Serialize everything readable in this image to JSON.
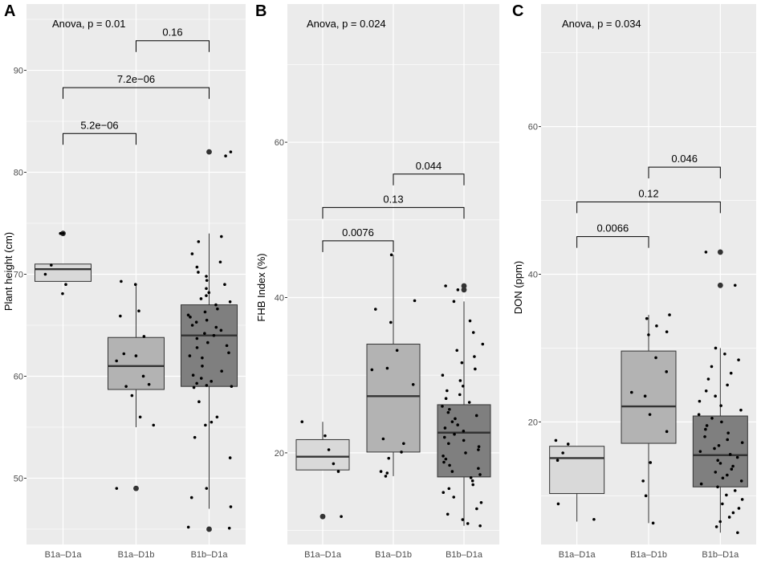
{
  "figure": {
    "colors": {
      "panel_bg": "#ebebeb",
      "grid": "#ffffff",
      "box_fills": [
        "#d9d9d9",
        "#b3b3b3",
        "#7f7f7f"
      ],
      "box_stroke": "#333333",
      "median": "#333333",
      "point": "#000000",
      "bracket": "#000000"
    }
  },
  "chart_data": [
    {
      "type": "box",
      "panel": "A",
      "title": "",
      "xlabel": "",
      "ylabel": "Plant height (cm)",
      "ylim": [
        43.5,
        96.5
      ],
      "yticks": [
        50,
        60,
        70,
        80,
        90
      ],
      "categories": [
        "B1a–D1a",
        "B1a–D1b",
        "B1b–D1a"
      ],
      "anova": "Anova, p = 0.01",
      "boxes": [
        {
          "q1": 69.3,
          "median": 70.5,
          "q3": 71.0,
          "whisker_low": 69.3,
          "whisker_high": 71.0,
          "outliers": [
            74.0
          ]
        },
        {
          "q1": 58.7,
          "median": 61.0,
          "q3": 63.8,
          "whisker_low": 55.0,
          "whisker_high": 69.0,
          "outliers": [
            49.0
          ]
        },
        {
          "q1": 59.0,
          "median": 64.0,
          "q3": 67.0,
          "whisker_low": 47.0,
          "whisker_high": 74.0,
          "outliers": [
            82.0,
            45.0
          ]
        }
      ],
      "points": [
        [
          68.1,
          69.0,
          70.0,
          70.9,
          74.0,
          74.0
        ],
        [
          49.0,
          55.2,
          56.0,
          58.1,
          59.0,
          59.2,
          60.0,
          61.5,
          62.0,
          62.2,
          63.9,
          65.9,
          66.4,
          69.0,
          69.3
        ],
        [
          45.2,
          45.1,
          47.2,
          48.1,
          49.0,
          52.0,
          54.0,
          55.2,
          55.5,
          56.0,
          57.5,
          58.9,
          59.0,
          59.1,
          59.3,
          59.5,
          59.8,
          60.1,
          60.5,
          61.0,
          61.8,
          62.0,
          62.3,
          62.8,
          63.0,
          63.3,
          63.7,
          64.0,
          64.2,
          64.5,
          64.8,
          65.0,
          65.3,
          65.5,
          65.8,
          66.0,
          66.3,
          66.6,
          67.0,
          67.3,
          67.6,
          67.9,
          68.2,
          68.6,
          69.0,
          69.4,
          69.8,
          70.2,
          70.7,
          71.2,
          72.0,
          73.2,
          73.7,
          81.6,
          82.0
        ]
      ],
      "comparisons": [
        {
          "groups": [
            0,
            1
          ],
          "label": "5.2e−06",
          "y": 83.8
        },
        {
          "groups": [
            0,
            2
          ],
          "label": "7.2e−06",
          "y": 88.3
        },
        {
          "groups": [
            1,
            2
          ],
          "label": "0.16",
          "y": 92.9
        }
      ]
    },
    {
      "type": "box",
      "panel": "B",
      "title": "",
      "xlabel": "",
      "ylabel": "FHB Index (%)",
      "ylim": [
        8.2,
        77.8
      ],
      "yticks": [
        20,
        40,
        60
      ],
      "categories": [
        "B1a–D1a",
        "B1a–D1b",
        "B1b–D1a"
      ],
      "anova": "Anova, p = 0.024",
      "boxes": [
        {
          "q1": 17.8,
          "median": 19.5,
          "q3": 21.7,
          "whisker_low": 17.8,
          "whisker_high": 24.0,
          "outliers": [
            11.8
          ]
        },
        {
          "q1": 20.1,
          "median": 27.3,
          "q3": 34.0,
          "whisker_low": 17.0,
          "whisker_high": 45.5,
          "outliers": []
        },
        {
          "q1": 16.9,
          "median": 22.6,
          "q3": 26.2,
          "whisker_low": 10.6,
          "whisker_high": 39.5,
          "outliers": [
            41.5,
            41.0
          ]
        }
      ],
      "points": [
        [
          11.8,
          17.6,
          18.6,
          20.4,
          22.2,
          24.0
        ],
        [
          17.0,
          17.4,
          17.6,
          19.3,
          20.1,
          21.2,
          21.8,
          28.8,
          30.7,
          30.9,
          33.2,
          36.8,
          38.5,
          39.6,
          45.5
        ],
        [
          10.6,
          10.9,
          11.4,
          12.1,
          12.8,
          13.6,
          14.3,
          14.9,
          15.4,
          15.9,
          16.4,
          16.8,
          17.2,
          17.6,
          18.0,
          18.4,
          18.8,
          19.2,
          19.6,
          20.0,
          20.4,
          20.8,
          21.2,
          21.6,
          22.0,
          22.4,
          22.8,
          23.2,
          23.6,
          24.0,
          24.4,
          24.8,
          25.2,
          25.6,
          26.0,
          26.5,
          27.0,
          27.5,
          28.0,
          28.6,
          29.3,
          30.0,
          30.8,
          31.6,
          32.4,
          33.2,
          34.0,
          35.5,
          37.0,
          39.5,
          41.0,
          41.5
        ]
      ],
      "comparisons": [
        {
          "groups": [
            0,
            1
          ],
          "label": "0.0076",
          "y": 47.3
        },
        {
          "groups": [
            0,
            2
          ],
          "label": "0.13",
          "y": 51.6
        },
        {
          "groups": [
            1,
            2
          ],
          "label": "0.044",
          "y": 55.9
        }
      ]
    },
    {
      "type": "box",
      "panel": "C",
      "title": "",
      "xlabel": "",
      "ylabel": "DON (ppm)",
      "ylim": [
        3.4,
        76.6
      ],
      "yticks": [
        20,
        40,
        60
      ],
      "categories": [
        "B1a–D1a",
        "B1a–D1b",
        "B1b–D1a"
      ],
      "anova": "Anova, p = 0.034",
      "boxes": [
        {
          "q1": 10.3,
          "median": 15.1,
          "q3": 16.7,
          "whisker_low": 6.5,
          "whisker_high": 16.7,
          "outliers": []
        },
        {
          "q1": 17.1,
          "median": 22.1,
          "q3": 29.6,
          "whisker_low": 6.3,
          "whisker_high": 34.5,
          "outliers": []
        },
        {
          "q1": 11.2,
          "median": 15.5,
          "q3": 20.8,
          "whisker_low": 5.0,
          "whisker_high": 30.0,
          "outliers": [
            43.0,
            38.5
          ]
        }
      ],
      "points": [
        [
          6.8,
          8.9,
          14.8,
          15.8,
          17.0,
          17.5
        ],
        [
          6.3,
          10.0,
          12.0,
          14.5,
          18.7,
          21.0,
          23.5,
          24.0,
          26.8,
          28.7,
          31.8,
          32.2,
          33.0,
          34.0,
          34.5
        ],
        [
          5.0,
          5.8,
          6.5,
          7.1,
          7.7,
          8.3,
          8.9,
          9.5,
          10.1,
          10.7,
          11.2,
          11.6,
          12.0,
          12.4,
          12.8,
          13.2,
          13.6,
          14.0,
          14.4,
          14.8,
          15.2,
          15.6,
          16.0,
          16.4,
          16.8,
          17.2,
          17.6,
          18.0,
          18.5,
          19.0,
          19.5,
          20.0,
          20.5,
          21.0,
          21.6,
          22.2,
          22.8,
          23.5,
          24.2,
          25.0,
          25.8,
          26.6,
          27.5,
          28.4,
          29.2,
          30.0,
          38.5,
          43.0
        ]
      ],
      "comparisons": [
        {
          "groups": [
            0,
            1
          ],
          "label": "0.0066",
          "y": 45.1
        },
        {
          "groups": [
            0,
            2
          ],
          "label": "0.12",
          "y": 49.8
        },
        {
          "groups": [
            1,
            2
          ],
          "label": "0.046",
          "y": 54.5
        }
      ]
    }
  ]
}
